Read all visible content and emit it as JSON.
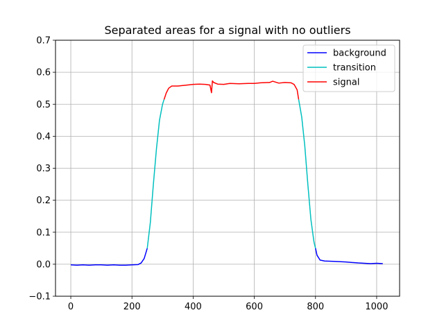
{
  "chart_data": {
    "type": "line",
    "title": "Separated areas for a signal with no outliers",
    "xlabel": "",
    "ylabel": "",
    "xlim": [
      -50,
      1075
    ],
    "ylim": [
      -0.1,
      0.7
    ],
    "xticks": [
      0,
      200,
      400,
      600,
      800,
      1000
    ],
    "xtick_labels": [
      "0",
      "200",
      "400",
      "600",
      "800",
      "1000"
    ],
    "yticks": [
      -0.1,
      0.0,
      0.1,
      0.2,
      0.3,
      0.4,
      0.5,
      0.6,
      0.7
    ],
    "ytick_labels": [
      "−0.1",
      "0.0",
      "0.1",
      "0.2",
      "0.3",
      "0.4",
      "0.5",
      "0.6",
      "0.7"
    ],
    "grid": true,
    "legend_position": "top-right",
    "series": [
      {
        "name": "background",
        "color": "#0000ff",
        "segments": [
          {
            "x": [
              0,
              20,
              40,
              60,
              80,
              100,
              120,
              140,
              160,
              180,
              200,
              220,
              230,
              240,
              250
            ],
            "y": [
              -0.002,
              -0.003,
              -0.002,
              -0.003,
              -0.002,
              -0.002,
              -0.003,
              -0.002,
              -0.003,
              -0.003,
              -0.002,
              -0.001,
              0.004,
              0.018,
              0.05
            ]
          },
          {
            "x": [
              800,
              805,
              815,
              830,
              860,
              900,
              940,
              980,
              1000,
              1020
            ],
            "y": [
              0.05,
              0.028,
              0.013,
              0.01,
              0.009,
              0.007,
              0.004,
              0.002,
              0.003,
              0.002
            ]
          }
        ]
      },
      {
        "name": "transition",
        "color": "#00bfbf",
        "segments": [
          {
            "x": [
              250,
              260,
              270,
              280,
              290,
              300,
              305
            ],
            "y": [
              0.05,
              0.13,
              0.25,
              0.36,
              0.45,
              0.5,
              0.515
            ]
          },
          {
            "x": [
              745,
              755,
              765,
              775,
              785,
              795,
              800
            ],
            "y": [
              0.515,
              0.46,
              0.37,
              0.25,
              0.14,
              0.07,
              0.05
            ]
          }
        ]
      },
      {
        "name": "signal",
        "color": "#ff0000",
        "segments": [
          {
            "x": [
              305,
              312,
              320,
              330,
              350,
              380,
              400,
              420,
              440,
              455,
              460,
              463,
              467,
              480,
              500,
              520,
              550,
              580,
              600,
              620,
              650,
              660,
              680,
              700,
              720,
              730,
              740,
              745
            ],
            "y": [
              0.515,
              0.535,
              0.55,
              0.557,
              0.557,
              0.56,
              0.562,
              0.563,
              0.562,
              0.56,
              0.536,
              0.573,
              0.568,
              0.563,
              0.562,
              0.565,
              0.564,
              0.565,
              0.565,
              0.567,
              0.568,
              0.572,
              0.566,
              0.568,
              0.567,
              0.562,
              0.545,
              0.515
            ]
          }
        ]
      }
    ]
  }
}
